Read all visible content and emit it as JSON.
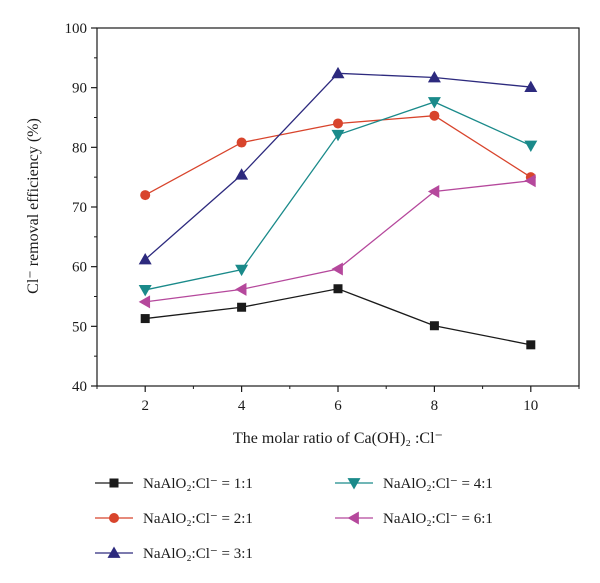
{
  "chart_data": {
    "type": "line",
    "xlabel": "The molar ratio of Ca(OH)₂ :Cl⁻",
    "ylabel": "Cl⁻ removal efficiency (%)",
    "x": [
      2,
      4,
      6,
      8,
      10
    ],
    "xlim": [
      1,
      11
    ],
    "ylim": [
      40,
      100
    ],
    "xticks": [
      "2",
      "4",
      "6",
      "8",
      "10"
    ],
    "yticks": [
      "40",
      "50",
      "60",
      "70",
      "80",
      "90",
      "100"
    ],
    "grid": false,
    "legend_position": "bottom",
    "series": [
      {
        "name": "NaAlO₂:Cl⁻ = 1:1",
        "marker": "square",
        "color": "#1a1a1a",
        "values": [
          51.3,
          53.2,
          56.3,
          50.1,
          46.9
        ]
      },
      {
        "name": "NaAlO₂:Cl⁻ = 2:1",
        "marker": "circle",
        "color": "#d8442c",
        "values": [
          72.0,
          80.8,
          84.0,
          85.3,
          75.0
        ]
      },
      {
        "name": "NaAlO₂:Cl⁻ = 3:1",
        "marker": "triangle-up",
        "color": "#2d2a7e",
        "values": [
          61.2,
          75.4,
          92.4,
          91.7,
          90.1
        ]
      },
      {
        "name": "NaAlO₂:Cl⁻ = 4:1",
        "marker": "triangle-down",
        "color": "#1a8a8a",
        "values": [
          56.1,
          59.5,
          82.1,
          87.6,
          80.3
        ]
      },
      {
        "name": "NaAlO₂:Cl⁻ = 6:1",
        "marker": "triangle-left",
        "color": "#b5489c",
        "values": [
          54.1,
          56.2,
          59.6,
          72.6,
          74.4
        ]
      }
    ]
  }
}
